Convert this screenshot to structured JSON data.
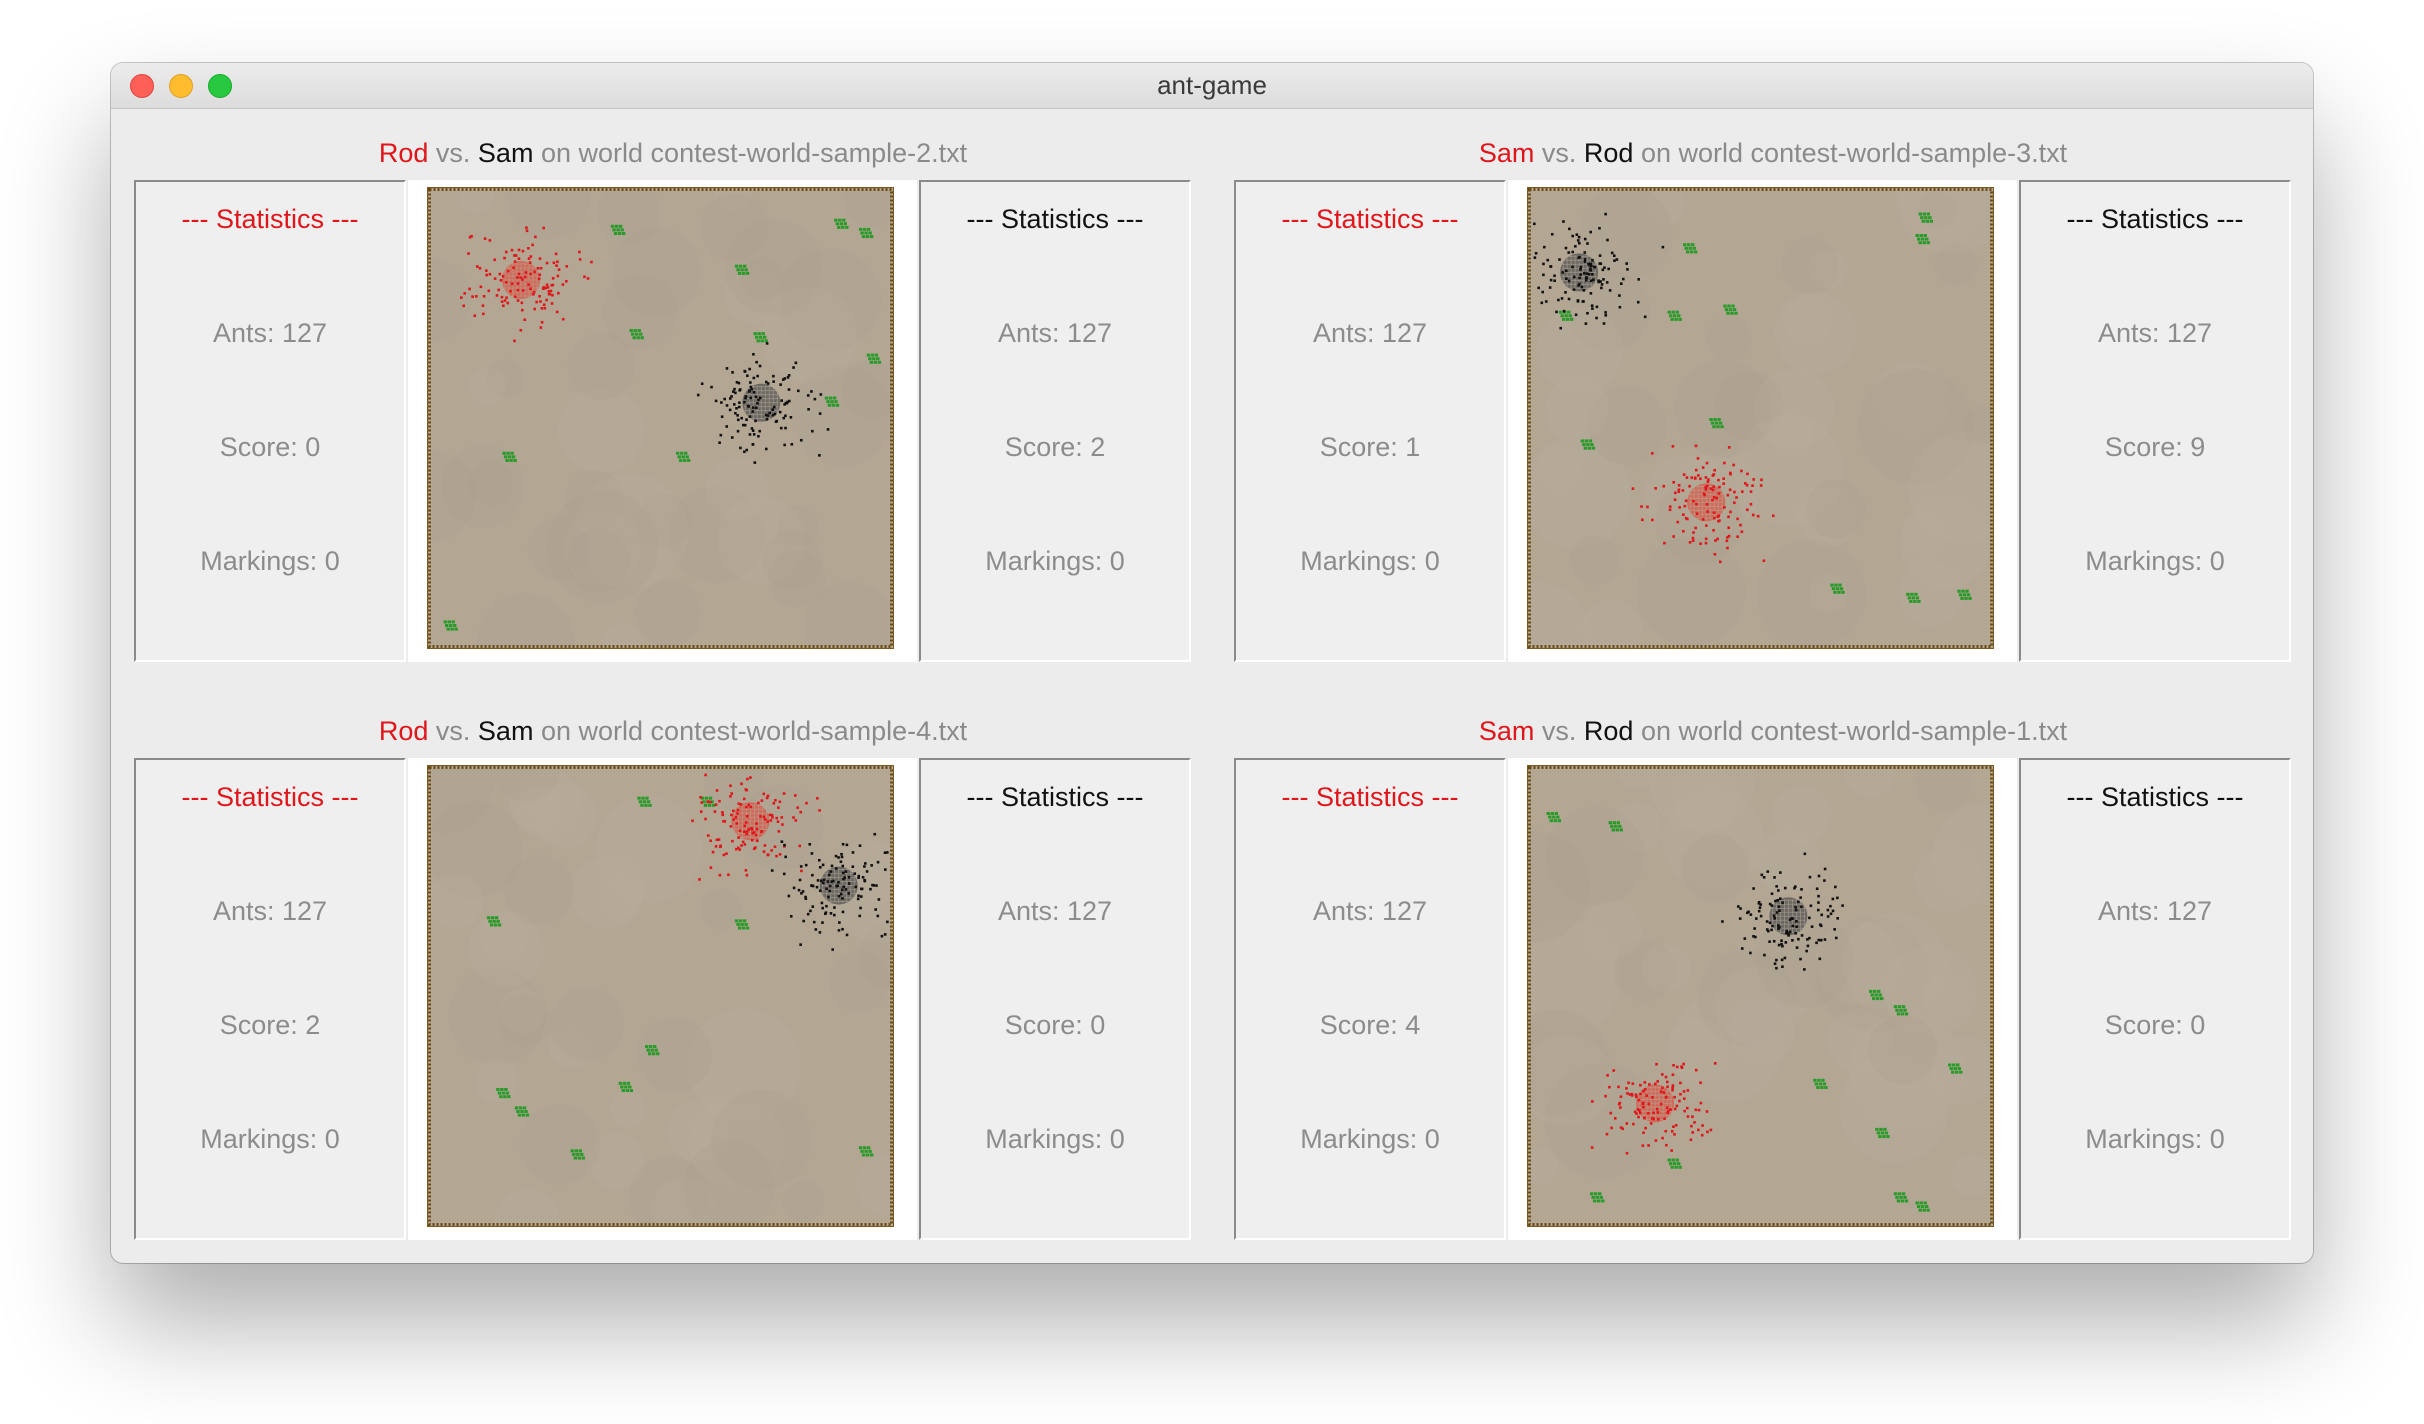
{
  "window": {
    "title": "ant-game"
  },
  "games": [
    {
      "player1": "Rod",
      "vs": "vs.",
      "player2": "Sam",
      "on_world": "on world",
      "world": "contest-world-sample-2.txt",
      "left_stats": {
        "header": "--- Statistics ---",
        "ants": "Ants: 127",
        "score": "Score: 0",
        "markings": "Markings: 0"
      },
      "right_stats": {
        "header": "--- Statistics ---",
        "ants": "Ants: 127",
        "score": "Score: 2",
        "markings": "Markings: 0"
      }
    },
    {
      "player1": "Sam",
      "vs": "vs.",
      "player2": "Rod",
      "on_world": "on world",
      "world": "contest-world-sample-3.txt",
      "left_stats": {
        "header": "--- Statistics ---",
        "ants": "Ants: 127",
        "score": "Score: 1",
        "markings": "Markings: 0"
      },
      "right_stats": {
        "header": "--- Statistics ---",
        "ants": "Ants: 127",
        "score": "Score: 9",
        "markings": "Markings: 0"
      }
    },
    {
      "player1": "Rod",
      "vs": "vs.",
      "player2": "Sam",
      "on_world": "on world",
      "world": "contest-world-sample-4.txt",
      "left_stats": {
        "header": "--- Statistics ---",
        "ants": "Ants: 127",
        "score": "Score: 2",
        "markings": "Markings: 0"
      },
      "right_stats": {
        "header": "--- Statistics ---",
        "ants": "Ants: 127",
        "score": "Score: 0",
        "markings": "Markings: 0"
      }
    },
    {
      "player1": "Sam",
      "vs": "vs.",
      "player2": "Rod",
      "on_world": "on world",
      "world": "contest-world-sample-1.txt",
      "left_stats": {
        "header": "--- Statistics ---",
        "ants": "Ants: 127",
        "score": "Score: 4",
        "markings": "Markings: 0"
      },
      "right_stats": {
        "header": "--- Statistics ---",
        "ants": "Ants: 127",
        "score": "Score: 0",
        "markings": "Markings: 0"
      }
    }
  ],
  "colors": {
    "red_team": "#e0161b",
    "black_team": "#111111",
    "sand": "#b3a794",
    "food": "#2a9a2a",
    "rock_border": "#6b4a14",
    "window_bg": "#ececec"
  }
}
